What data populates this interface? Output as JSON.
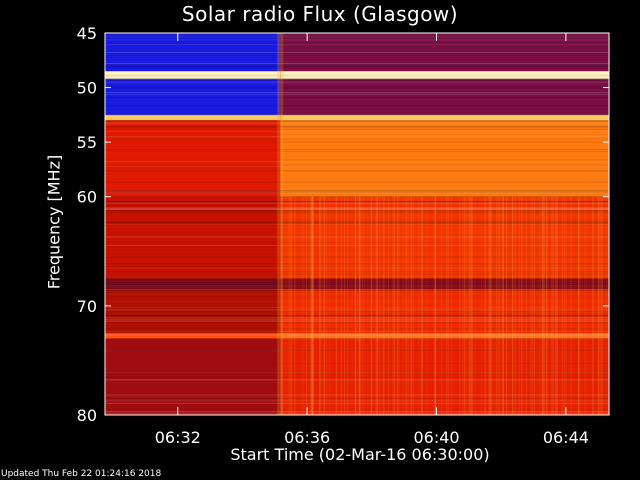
{
  "chart_data": {
    "type": "heatmap",
    "title": "Solar radio Flux (Glasgow)",
    "xlabel": "Start Time (02-Mar-16 06:30:00)",
    "ylabel": "Frequency [MHz]",
    "x_unit": "time (HH:MM)",
    "x_range": [
      "06:29:45",
      "06:45:20"
    ],
    "y_range": [
      45,
      80
    ],
    "y_axis_direction": "downward (45 at top, 80 at bottom)",
    "x_ticks": [
      "06:32",
      "06:36",
      "06:40",
      "06:44"
    ],
    "y_ticks": [
      45,
      50,
      55,
      60,
      70,
      80
    ],
    "onset_time": "06:35:10",
    "colormap": "blue-red-yellow-white (low to high flux)",
    "colors": {
      "low": "#2020e0",
      "mid_low": "#700a40",
      "mid": "#e01a00",
      "high": "#ff7a10",
      "peak": "#ffe6a0"
    },
    "bands": [
      {
        "from_mhz": 45.0,
        "to_mhz": 48.5,
        "before": "#1a1ae0",
        "after": "#7a0f46"
      },
      {
        "from_mhz": 48.5,
        "to_mhz": 49.2,
        "before": "#fff3c0",
        "after": "#fff3c0"
      },
      {
        "from_mhz": 49.2,
        "to_mhz": 52.5,
        "before": "#1a1ae0",
        "after": "#7a0f46"
      },
      {
        "from_mhz": 52.5,
        "to_mhz": 53.0,
        "before": "#ffcf60",
        "after": "#ffcf60"
      },
      {
        "from_mhz": 53.0,
        "to_mhz": 60.0,
        "before": "#e01a00",
        "after": "#ff7a10"
      },
      {
        "from_mhz": 60.0,
        "to_mhz": 67.5,
        "before": "#c81200",
        "after": "#f43500"
      },
      {
        "from_mhz": 67.5,
        "to_mhz": 68.5,
        "before": "#7a0a20",
        "after": "#8a0a1a"
      },
      {
        "from_mhz": 68.5,
        "to_mhz": 72.5,
        "before": "#b01000",
        "after": "#ef2a00"
      },
      {
        "from_mhz": 72.5,
        "to_mhz": 73.0,
        "before": "#ff5010",
        "after": "#ff7020"
      },
      {
        "from_mhz": 73.0,
        "to_mhz": 80.0,
        "before": "#a00d10",
        "after": "#e62000"
      }
    ]
  },
  "footer": {
    "updated": "Updated Thu Feb 22 01:24:16 2018"
  }
}
